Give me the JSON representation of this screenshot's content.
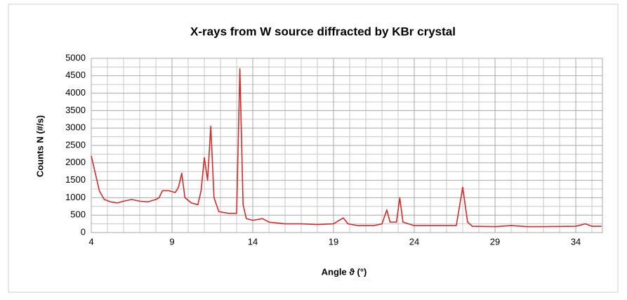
{
  "chart_data": {
    "type": "line",
    "title": "X-rays from W source diffracted by KBr crystal",
    "xlabel": "Angle ϑ (°)",
    "ylabel": "Counts N (#/s)",
    "x": [
      4.0,
      4.2,
      4.5,
      4.8,
      5.2,
      5.6,
      6.0,
      6.5,
      7.0,
      7.5,
      8.0,
      8.2,
      8.4,
      8.8,
      9.2,
      9.4,
      9.6,
      9.8,
      10.2,
      10.6,
      10.8,
      11.0,
      11.2,
      11.4,
      11.6,
      11.9,
      12.5,
      13.0,
      13.2,
      13.4,
      13.6,
      14.0,
      14.6,
      15.0,
      16.0,
      17.0,
      18.0,
      19.0,
      19.6,
      19.9,
      20.5,
      21.5,
      22.0,
      22.3,
      22.5,
      22.9,
      23.1,
      23.3,
      24.0,
      25.0,
      26.0,
      26.6,
      27.0,
      27.3,
      27.6,
      29.0,
      30.0,
      31.0,
      32.0,
      34.0,
      34.6,
      35.0,
      35.6
    ],
    "series": [
      {
        "name": "Counts",
        "color": "#d42a2a",
        "values": [
          2200,
          1800,
          1200,
          950,
          880,
          850,
          900,
          950,
          900,
          880,
          950,
          1000,
          1200,
          1200,
          1150,
          1300,
          1700,
          1000,
          850,
          800,
          1200,
          2150,
          1500,
          3050,
          1000,
          600,
          550,
          550,
          4700,
          800,
          400,
          350,
          400,
          300,
          250,
          250,
          230,
          250,
          420,
          250,
          200,
          200,
          250,
          650,
          300,
          300,
          1000,
          300,
          200,
          200,
          200,
          200,
          1300,
          300,
          180,
          170,
          200,
          170,
          170,
          180,
          250,
          180,
          180
        ]
      }
    ],
    "xlim": [
      4,
      35.65
    ],
    "ylim": [
      0,
      5000
    ],
    "xticks": [
      4,
      9,
      14,
      19,
      24,
      29,
      34
    ],
    "xgrid": [
      5,
      6,
      7,
      8,
      10,
      11,
      12,
      13,
      15,
      16,
      17,
      18,
      20,
      21,
      22,
      23,
      25,
      26,
      27,
      28,
      30,
      31,
      32,
      33,
      35
    ],
    "yticks": [
      0,
      500,
      1000,
      1500,
      2000,
      2500,
      3000,
      3500,
      4000,
      4500,
      5000
    ],
    "ygrid": [
      250,
      750,
      1250,
      1750,
      2250,
      2750,
      3250,
      3750,
      4250,
      4750
    ],
    "grid": true
  }
}
